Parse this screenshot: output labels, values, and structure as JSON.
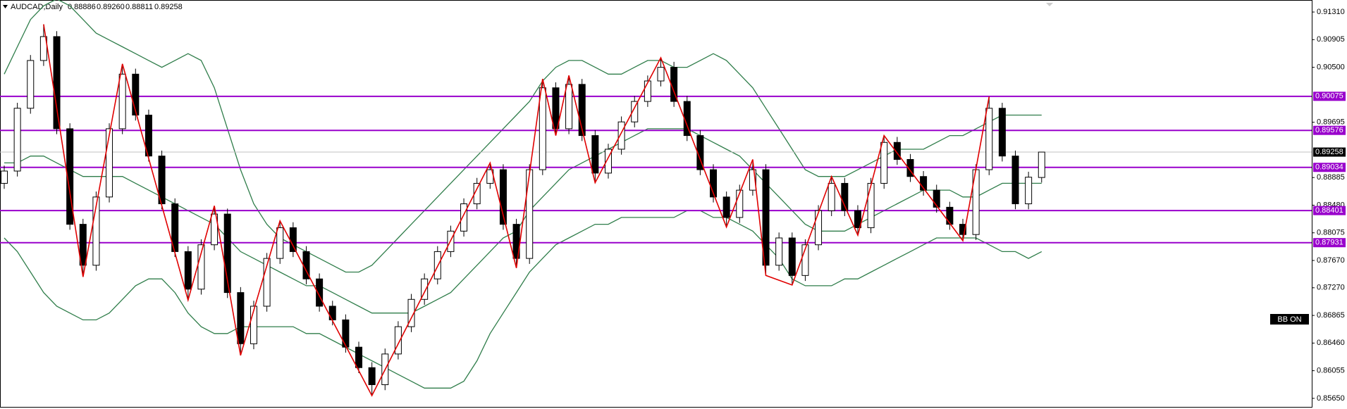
{
  "chart_data": {
    "type": "candlestick",
    "symbol": "AUDCAD,Daily",
    "ohlc_labels": [
      "0.88886",
      "0.89260",
      "0.88811",
      "0.89258"
    ],
    "indicator_label": "BB ON",
    "ylim": [
      0.85525,
      0.91486
    ],
    "yticks": [
      {
        "value": 0.9131,
        "label": "0.91310"
      },
      0.90905,
      {
        "value": 0.905,
        "label": "0.90500"
      },
      0.89695,
      0.88885,
      {
        "value": 0.8848,
        "label": "0.88480"
      },
      0.88075,
      {
        "value": 0.8767,
        "label": "0.87670"
      },
      {
        "value": 0.8727,
        "label": "0.87270"
      },
      0.86865,
      {
        "value": 0.8646,
        "label": "0.86460"
      },
      0.86055,
      {
        "value": 0.8565,
        "label": "0.85650"
      }
    ],
    "open": [
      0.888,
      0.8898,
      0.899,
      0.906,
      0.9095,
      0.896,
      0.882,
      0.876,
      0.886,
      0.896,
      0.904,
      0.898,
      0.892,
      0.885,
      0.878,
      0.8725,
      0.879,
      0.8835,
      0.872,
      0.8645,
      0.87,
      0.877,
      0.8815,
      0.878,
      0.874,
      0.87,
      0.868,
      0.864,
      0.861,
      0.8585,
      0.863,
      0.867,
      0.871,
      0.874,
      0.878,
      0.881,
      0.885,
      0.888,
      0.89,
      0.882,
      0.877,
      0.89,
      0.902,
      0.896,
      0.9025,
      0.895,
      0.8895,
      0.893,
      0.897,
      0.9,
      0.903,
      0.905,
      0.9,
      0.895,
      0.89,
      0.886,
      0.883,
      0.887,
      0.89,
      0.876,
      0.88,
      0.8745,
      0.879,
      0.884,
      0.888,
      0.884,
      0.8815,
      0.888,
      0.894,
      0.8915,
      0.889,
      0.887,
      0.8845,
      0.882,
      0.8805,
      0.89,
      0.899,
      0.892,
      0.885,
      0.88886
    ],
    "high": [
      0.8906,
      0.8998,
      0.9068,
      0.9113,
      0.9103,
      0.8968,
      0.8828,
      0.8868,
      0.8968,
      0.9055,
      0.9048,
      0.8988,
      0.8928,
      0.8858,
      0.8788,
      0.8798,
      0.8847,
      0.8843,
      0.8728,
      0.8708,
      0.8778,
      0.8825,
      0.8823,
      0.8788,
      0.8748,
      0.8708,
      0.8688,
      0.8648,
      0.8618,
      0.8638,
      0.8678,
      0.8718,
      0.8748,
      0.8788,
      0.8818,
      0.8858,
      0.8888,
      0.891,
      0.8908,
      0.8828,
      0.8908,
      0.9033,
      0.9028,
      0.9038,
      0.9033,
      0.8958,
      0.8938,
      0.8978,
      0.9008,
      0.9038,
      0.9064,
      0.9058,
      0.9008,
      0.8958,
      0.8908,
      0.8868,
      0.8878,
      0.8915,
      0.8908,
      0.8808,
      0.8808,
      0.8798,
      0.8848,
      0.889,
      0.8888,
      0.8848,
      0.8888,
      0.895,
      0.8948,
      0.8923,
      0.8898,
      0.8878,
      0.8853,
      0.8828,
      0.8908,
      0.9007,
      0.8998,
      0.8928,
      0.8897,
      0.8926
    ],
    "low": [
      0.8872,
      0.889,
      0.8982,
      0.9052,
      0.8952,
      0.8812,
      0.8743,
      0.8752,
      0.8852,
      0.8952,
      0.8972,
      0.8912,
      0.8842,
      0.8772,
      0.8709,
      0.8717,
      0.8782,
      0.8712,
      0.8628,
      0.8637,
      0.8692,
      0.8762,
      0.8772,
      0.8732,
      0.8692,
      0.8672,
      0.8632,
      0.8602,
      0.8569,
      0.8577,
      0.8622,
      0.8662,
      0.8702,
      0.8732,
      0.8772,
      0.8802,
      0.8842,
      0.8872,
      0.8812,
      0.8756,
      0.8762,
      0.8892,
      0.895,
      0.8952,
      0.8942,
      0.8881,
      0.8887,
      0.8922,
      0.8962,
      0.8992,
      0.9022,
      0.8992,
      0.8942,
      0.8892,
      0.8852,
      0.8816,
      0.8822,
      0.8862,
      0.8745,
      0.8752,
      0.8731,
      0.8737,
      0.8782,
      0.8832,
      0.8832,
      0.8804,
      0.8807,
      0.8872,
      0.8907,
      0.8882,
      0.8862,
      0.8837,
      0.8812,
      0.8796,
      0.8797,
      0.8892,
      0.8912,
      0.8842,
      0.8842,
      0.88811
    ],
    "close": [
      0.8898,
      0.899,
      0.906,
      0.9095,
      0.896,
      0.882,
      0.876,
      0.886,
      0.896,
      0.904,
      0.898,
      0.892,
      0.885,
      0.878,
      0.8725,
      0.879,
      0.8835,
      0.872,
      0.8645,
      0.87,
      0.877,
      0.8815,
      0.878,
      0.874,
      0.87,
      0.868,
      0.864,
      0.861,
      0.8585,
      0.863,
      0.867,
      0.871,
      0.874,
      0.878,
      0.881,
      0.885,
      0.888,
      0.89,
      0.882,
      0.877,
      0.89,
      0.902,
      0.896,
      0.9025,
      0.895,
      0.8895,
      0.893,
      0.897,
      0.9,
      0.903,
      0.905,
      0.9,
      0.895,
      0.89,
      0.886,
      0.883,
      0.887,
      0.89,
      0.876,
      0.88,
      0.8745,
      0.879,
      0.884,
      0.888,
      0.884,
      0.8815,
      0.888,
      0.894,
      0.8915,
      0.889,
      0.887,
      0.8845,
      0.882,
      0.8805,
      0.89,
      0.899,
      0.892,
      0.885,
      0.8889,
      0.89258
    ],
    "bands": [
      {
        "color": "#2f7d4a",
        "values": [
          0.904,
          0.908,
          0.912,
          0.914,
          0.915,
          0.914,
          0.912,
          0.91,
          0.909,
          0.908,
          0.907,
          0.906,
          0.905,
          0.906,
          0.907,
          0.906,
          0.902,
          0.896,
          0.89,
          0.885,
          0.882,
          0.88,
          0.879,
          0.878,
          0.877,
          0.876,
          0.875,
          0.875,
          0.876,
          0.878,
          0.88,
          0.882,
          0.884,
          0.886,
          0.888,
          0.89,
          0.892,
          0.894,
          0.896,
          0.898,
          0.9,
          0.903,
          0.905,
          0.906,
          0.906,
          0.905,
          0.904,
          0.904,
          0.905,
          0.906,
          0.906,
          0.905,
          0.905,
          0.906,
          0.907,
          0.906,
          0.904,
          0.902,
          0.899,
          0.896,
          0.893,
          0.89,
          0.889,
          0.889,
          0.889,
          0.89,
          0.891,
          0.892,
          0.893,
          0.893,
          0.893,
          0.894,
          0.895,
          0.895,
          0.896,
          0.897,
          0.898,
          0.898,
          0.898,
          0.898
        ]
      },
      {
        "color": "#2f7d4a",
        "values": [
          0.891,
          0.891,
          0.892,
          0.892,
          0.891,
          0.89,
          0.889,
          0.889,
          0.889,
          0.889,
          0.888,
          0.887,
          0.886,
          0.885,
          0.884,
          0.883,
          0.882,
          0.88,
          0.878,
          0.877,
          0.876,
          0.875,
          0.874,
          0.873,
          0.873,
          0.872,
          0.871,
          0.87,
          0.869,
          0.869,
          0.869,
          0.869,
          0.87,
          0.871,
          0.872,
          0.874,
          0.876,
          0.878,
          0.88,
          0.881,
          0.884,
          0.886,
          0.888,
          0.89,
          0.891,
          0.892,
          0.893,
          0.894,
          0.895,
          0.896,
          0.896,
          0.896,
          0.896,
          0.895,
          0.894,
          0.893,
          0.892,
          0.89,
          0.888,
          0.886,
          0.884,
          0.882,
          0.881,
          0.881,
          0.881,
          0.882,
          0.883,
          0.884,
          0.885,
          0.886,
          0.887,
          0.887,
          0.887,
          0.886,
          0.886,
          0.887,
          0.888,
          0.888,
          0.888,
          0.888
        ]
      },
      {
        "color": "#2f7d4a",
        "values": [
          0.88,
          0.878,
          0.875,
          0.872,
          0.87,
          0.869,
          0.868,
          0.868,
          0.869,
          0.871,
          0.873,
          0.874,
          0.874,
          0.872,
          0.869,
          0.867,
          0.866,
          0.866,
          0.867,
          0.867,
          0.867,
          0.867,
          0.867,
          0.866,
          0.866,
          0.865,
          0.864,
          0.863,
          0.862,
          0.861,
          0.86,
          0.859,
          0.858,
          0.858,
          0.858,
          0.859,
          0.862,
          0.866,
          0.869,
          0.872,
          0.875,
          0.877,
          0.879,
          0.88,
          0.881,
          0.882,
          0.882,
          0.883,
          0.883,
          0.883,
          0.883,
          0.883,
          0.884,
          0.884,
          0.883,
          0.883,
          0.882,
          0.881,
          0.879,
          0.877,
          0.874,
          0.873,
          0.873,
          0.873,
          0.874,
          0.874,
          0.875,
          0.876,
          0.877,
          0.878,
          0.879,
          0.88,
          0.88,
          0.88,
          0.88,
          0.879,
          0.878,
          0.878,
          0.877,
          0.878
        ]
      }
    ],
    "zigzag": {
      "color": "#e00000",
      "x": [
        3,
        6,
        9,
        14,
        16,
        18,
        21,
        28,
        37,
        39,
        41,
        42,
        43,
        45,
        50,
        55,
        57,
        58,
        60,
        63,
        65,
        67,
        73,
        75
      ],
      "values": [
        0.9113,
        0.8743,
        0.9055,
        0.8709,
        0.8847,
        0.8628,
        0.8825,
        0.8569,
        0.891,
        0.8756,
        0.9033,
        0.895,
        0.9038,
        0.8881,
        0.9064,
        0.8816,
        0.8915,
        0.8745,
        0.8731,
        0.889,
        0.8804,
        0.895,
        0.8796,
        0.9007
      ]
    },
    "levels": [
      0.90075,
      0.89576,
      0.89034,
      0.88401,
      0.87931
    ],
    "level_color": "#9900cc"
  }
}
